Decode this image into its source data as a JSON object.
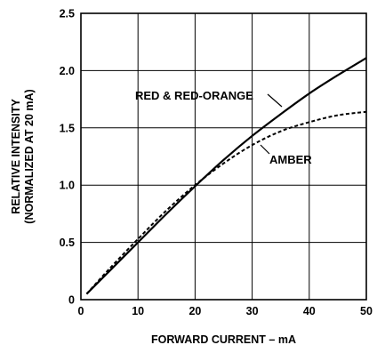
{
  "chart_data": {
    "type": "line",
    "xlabel": "FORWARD CURRENT – mA",
    "ylabel_line1": "RELATIVE INTENSITY",
    "ylabel_line2": "(NORMALIZED AT 20 mA)",
    "xlim": [
      0,
      50
    ],
    "ylim": [
      0,
      2.5
    ],
    "xticks": [
      0,
      10,
      20,
      30,
      40,
      50
    ],
    "xtick_labels": [
      "0",
      "10",
      "20",
      "30",
      "40",
      "50"
    ],
    "yticks": [
      0,
      0.5,
      1.0,
      1.5,
      2.0,
      2.5
    ],
    "ytick_labels": [
      "0",
      "0.5",
      "1.0",
      "1.5",
      "2.0",
      "2.5"
    ],
    "grid": true,
    "series": [
      {
        "name": "RED & RED-ORANGE",
        "style": "solid",
        "x": [
          1,
          5,
          10,
          15,
          20,
          25,
          30,
          35,
          40,
          45,
          50
        ],
        "y": [
          0.05,
          0.25,
          0.5,
          0.75,
          0.99,
          1.22,
          1.43,
          1.62,
          1.8,
          1.96,
          2.11
        ]
      },
      {
        "name": "AMBER",
        "style": "dashed",
        "x": [
          1,
          5,
          10,
          15,
          20,
          25,
          30,
          35,
          40,
          45,
          50
        ],
        "y": [
          0.05,
          0.27,
          0.53,
          0.78,
          1.0,
          1.19,
          1.35,
          1.47,
          1.55,
          1.61,
          1.64
        ]
      }
    ],
    "annotations": [
      {
        "text": "RED & RED-ORANGE",
        "series": 0
      },
      {
        "text": "AMBER",
        "series": 1
      }
    ]
  }
}
